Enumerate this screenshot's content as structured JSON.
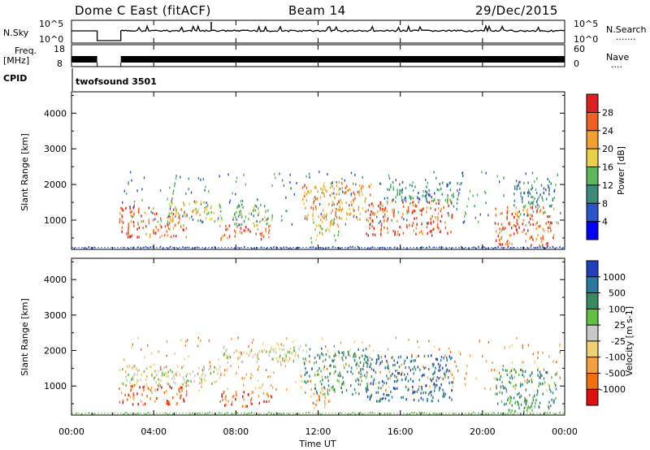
{
  "header": {
    "radar": "Dome C East (fitACF)",
    "beam": "Beam 14",
    "date": "29/Dec/2015"
  },
  "panels": {
    "nsky_label": "N.Sky",
    "nsky_ticks": [
      "10^5",
      "10^0"
    ],
    "nsearch_label": "N.Search",
    "nsearch_dots": "·······",
    "nsearch_ticks": [
      "10^5",
      "10^0"
    ],
    "freq_label": "Freq.",
    "freq_unit": "[MHz]",
    "freq_ticks": [
      "18",
      "8"
    ],
    "nave_label": "Nave",
    "nave_dots": "····",
    "nave_ticks": [
      "60",
      "0"
    ],
    "cpid_label": "CPID",
    "cpid_value": "twofsound 3501"
  },
  "chart_data": [
    {
      "type": "heatmap",
      "quantity": "Power",
      "ylabel": "Slant Range [km]",
      "ylim": [
        180,
        4600
      ],
      "yticks": [
        1000,
        2000,
        3000,
        4000
      ],
      "xlim": [
        0,
        24
      ],
      "colorbar": {
        "label": "Power [dB]",
        "ticks": [
          "4",
          "8",
          "12",
          "16",
          "20",
          "24",
          "28"
        ],
        "colors": [
          "#0000ff",
          "#2a55c8",
          "#3c8a78",
          "#5cb85c",
          "#e8d04a",
          "#f4a030",
          "#f06020",
          "#e02020"
        ]
      },
      "regions": [
        {
          "t0": 2.3,
          "t1": 5.6,
          "r0": 550,
          "r1": 1400,
          "level": 6
        },
        {
          "t0": 4.7,
          "t1": 7.3,
          "r0": 950,
          "r1": 1550,
          "level": 4
        },
        {
          "t0": 7.2,
          "t1": 9.7,
          "r0": 450,
          "r1": 900,
          "level": 6
        },
        {
          "t0": 7.8,
          "t1": 9.8,
          "r0": 900,
          "r1": 1500,
          "level": 3
        },
        {
          "t0": 11.2,
          "t1": 14.6,
          "r0": 1000,
          "r1": 2100,
          "level": 5
        },
        {
          "t0": 11.6,
          "t1": 13.0,
          "r0": 400,
          "r1": 1000,
          "level": 4
        },
        {
          "t0": 14.3,
          "t1": 18.5,
          "r0": 600,
          "r1": 1600,
          "level": 6
        },
        {
          "t0": 15.3,
          "t1": 18.8,
          "r0": 1500,
          "r1": 2100,
          "level": 2
        },
        {
          "t0": 20.6,
          "t1": 23.6,
          "r0": 300,
          "r1": 1400,
          "level": 6
        },
        {
          "t0": 21.5,
          "t1": 23.5,
          "r0": 1400,
          "r1": 2200,
          "level": 2
        }
      ]
    },
    {
      "type": "heatmap",
      "quantity": "Velocity",
      "ylabel": "Slant Range [km]",
      "ylim": [
        180,
        4600
      ],
      "yticks": [
        1000,
        2000,
        3000,
        4000
      ],
      "xlim": [
        0,
        24
      ],
      "xticks": [
        "00:00",
        "04:00",
        "08:00",
        "12:00",
        "16:00",
        "20:00",
        "00:00"
      ],
      "xlabel": "Time UT",
      "colorbar": {
        "label": "Velocity [m s-1]",
        "ticks": [
          "-1000",
          "-500",
          "-100",
          "-25",
          "25",
          "100",
          "500",
          "1000"
        ],
        "colors": [
          "#e01010",
          "#f07010",
          "#f4a040",
          "#f0d070",
          "#c8c8c8",
          "#60c040",
          "#3a8a60",
          "#2a7aa0",
          "#2040c0"
        ]
      },
      "regions": [
        {
          "t0": 2.3,
          "t1": 5.6,
          "r0": 500,
          "r1": 1050,
          "level": 1
        },
        {
          "t0": 2.3,
          "t1": 7.3,
          "r0": 1050,
          "r1": 1600,
          "level": 4
        },
        {
          "t0": 7.2,
          "t1": 9.7,
          "r0": 450,
          "r1": 900,
          "level": 1
        },
        {
          "t0": 7.3,
          "t1": 11.5,
          "r0": 1700,
          "r1": 2200,
          "level": 4
        },
        {
          "t0": 11.3,
          "t1": 14.4,
          "r0": 800,
          "r1": 2100,
          "level": 6
        },
        {
          "t0": 11.6,
          "t1": 12.6,
          "r0": 400,
          "r1": 1000,
          "level": 2
        },
        {
          "t0": 14.3,
          "t1": 18.6,
          "r0": 600,
          "r1": 1900,
          "level": 7
        },
        {
          "t0": 20.6,
          "t1": 23.6,
          "r0": 400,
          "r1": 1500,
          "level": 6
        },
        {
          "t0": 21.2,
          "t1": 22.4,
          "r0": 250,
          "r1": 700,
          "level": 5
        }
      ]
    }
  ]
}
